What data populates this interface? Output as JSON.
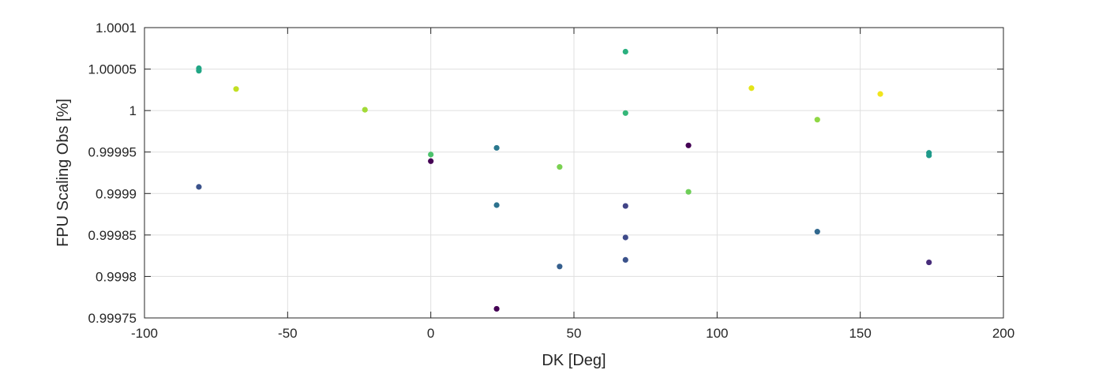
{
  "chart_data": {
    "type": "scatter",
    "xlabel": "DK [Deg]",
    "ylabel": "FPU Scaling Obs [%]",
    "xlim": [
      -100,
      200
    ],
    "ylim": [
      0.99975,
      1.0001
    ],
    "xticks": [
      -100,
      -50,
      0,
      50,
      100,
      150,
      200
    ],
    "yticks": [
      0.99975,
      0.9998,
      0.99985,
      0.9999,
      0.99995,
      1,
      1.00005,
      1.0001
    ],
    "xtick_labels": [
      "-100",
      "-50",
      "0",
      "50",
      "100",
      "150",
      "200"
    ],
    "ytick_labels": [
      "0.99975",
      "0.9998",
      "0.99985",
      "0.9999",
      "0.99995",
      "1",
      "1.00005",
      "1.0001"
    ],
    "grid": true,
    "legend": "none",
    "points": [
      {
        "x": -81,
        "y": 1.000051,
        "color": "#21a685"
      },
      {
        "x": -81,
        "y": 1.000048,
        "color": "#21a685"
      },
      {
        "x": -81,
        "y": 0.999908,
        "color": "#3b528b"
      },
      {
        "x": -68,
        "y": 1.000026,
        "color": "#c2df23"
      },
      {
        "x": -23,
        "y": 1.000001,
        "color": "#a2da37"
      },
      {
        "x": 0,
        "y": 0.999947,
        "color": "#4cc26c"
      },
      {
        "x": 0,
        "y": 0.999939,
        "color": "#440154"
      },
      {
        "x": 23,
        "y": 0.999955,
        "color": "#2a788e"
      },
      {
        "x": 23,
        "y": 0.999886,
        "color": "#2c728e"
      },
      {
        "x": 23,
        "y": 0.999761,
        "color": "#440154"
      },
      {
        "x": 45,
        "y": 0.999932,
        "color": "#7ad151"
      },
      {
        "x": 45,
        "y": 0.999812,
        "color": "#355f8d"
      },
      {
        "x": 68,
        "y": 1.000071,
        "color": "#2ab07f"
      },
      {
        "x": 68,
        "y": 0.999997,
        "color": "#35b779"
      },
      {
        "x": 68,
        "y": 0.999885,
        "color": "#414487"
      },
      {
        "x": 68,
        "y": 0.999847,
        "color": "#3e4a89"
      },
      {
        "x": 68,
        "y": 0.99982,
        "color": "#3b528b"
      },
      {
        "x": 90,
        "y": 0.999958,
        "color": "#440154"
      },
      {
        "x": 90,
        "y": 0.999902,
        "color": "#6ece58"
      },
      {
        "x": 112,
        "y": 1.000027,
        "color": "#e3e418"
      },
      {
        "x": 135,
        "y": 0.999989,
        "color": "#8fd744"
      },
      {
        "x": 135,
        "y": 0.999854,
        "color": "#31688e"
      },
      {
        "x": 157,
        "y": 1.00002,
        "color": "#f1e51d"
      },
      {
        "x": 174,
        "y": 0.999949,
        "color": "#1f9a8a"
      },
      {
        "x": 174,
        "y": 0.999946,
        "color": "#1f9a8a"
      },
      {
        "x": 174,
        "y": 0.999817,
        "color": "#472c7a"
      }
    ]
  }
}
